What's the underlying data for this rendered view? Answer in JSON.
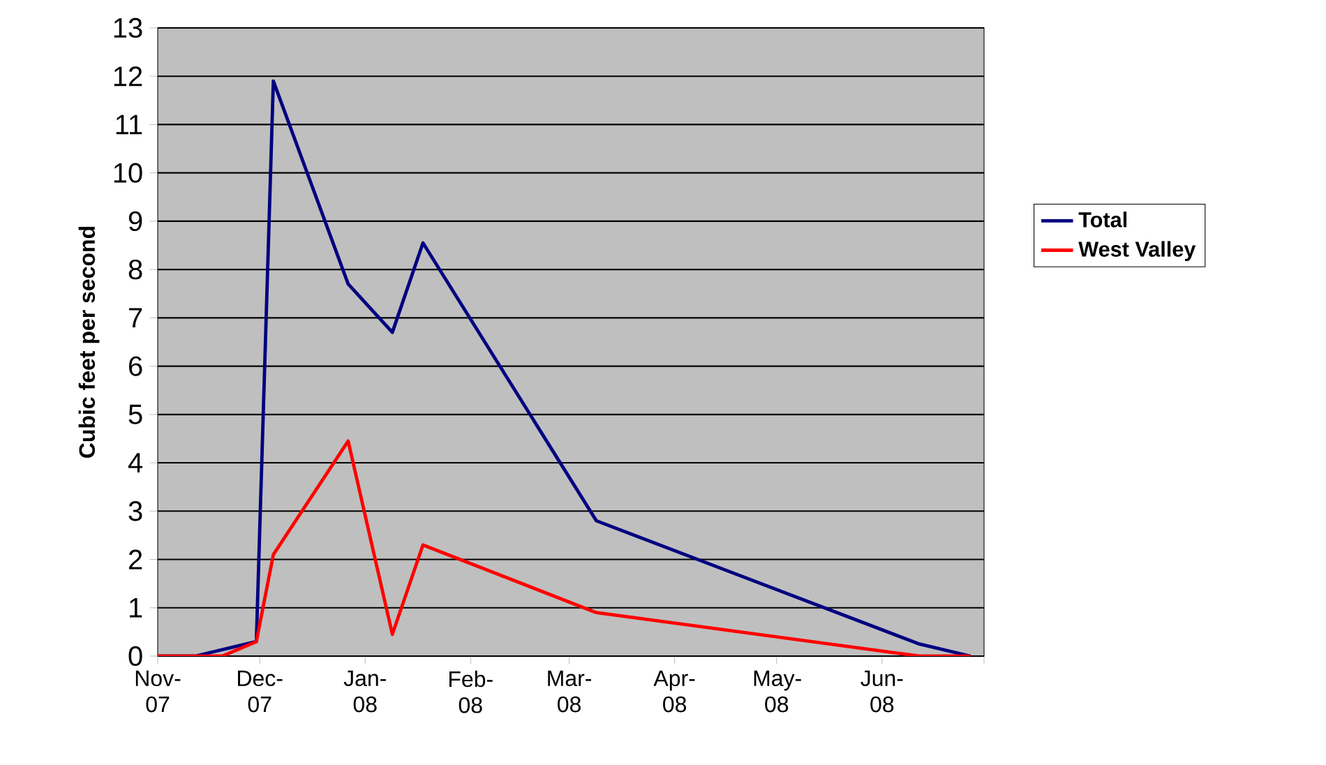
{
  "chart_data": {
    "type": "line",
    "ylabel": "Cubic feet per second",
    "x": [
      "2007-11-01",
      "2007-11-12",
      "2007-11-30",
      "2007-12-05",
      "2007-12-27",
      "2008-01-09",
      "2008-01-18",
      "2008-03-09",
      "2008-06-12",
      "2008-06-27"
    ],
    "series": [
      {
        "name": "Total",
        "color": "#000080",
        "values": [
          0,
          0,
          0.3,
          11.9,
          7.7,
          6.7,
          8.55,
          2.8,
          0.25,
          0
        ]
      },
      {
        "name": "West Valley",
        "color": "#ff0000",
        "x": [
          "2007-11-01",
          "2007-11-20",
          "2007-11-30",
          "2007-12-05",
          "2007-12-27",
          "2008-01-09",
          "2008-01-18",
          "2008-03-09",
          "2008-06-12",
          "2008-06-27"
        ],
        "values": [
          0,
          0,
          0.3,
          2.1,
          4.45,
          0.45,
          2.3,
          0.9,
          0,
          0
        ]
      }
    ],
    "xlim": [
      "2007-11-01",
      "2008-07-01"
    ],
    "xticks": [
      {
        "value": "2007-11-01",
        "label": "Nov-07"
      },
      {
        "value": "2007-12-01",
        "label": "Dec-07"
      },
      {
        "value": "2008-01-01",
        "label": "Jan-08"
      },
      {
        "value": "2008-02-01",
        "label": "Feb-08"
      },
      {
        "value": "2008-03-01",
        "label": "Mar-08"
      },
      {
        "value": "2008-04-01",
        "label": "Apr-08"
      },
      {
        "value": "2008-05-01",
        "label": "May-08"
      },
      {
        "value": "2008-06-01",
        "label": "Jun-08"
      },
      {
        "value": "2008-07-01",
        "label": null
      }
    ],
    "ylim": [
      0,
      13
    ],
    "yticks": [
      0,
      1,
      2,
      3,
      4,
      5,
      6,
      7,
      8,
      9,
      10,
      11,
      12,
      13
    ],
    "grid": "y",
    "legend": "right",
    "marker": "none",
    "line_style": "solid"
  }
}
